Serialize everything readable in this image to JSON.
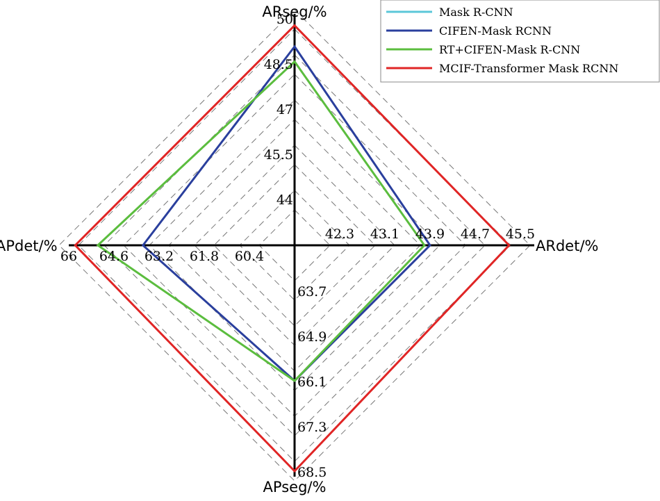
{
  "chart_data": {
    "type": "radar",
    "axes": [
      {
        "label": "ARseg/%",
        "ticks": [
          "44",
          "45.5",
          "47",
          "48.5",
          "50"
        ],
        "ticks_numeric": [
          44,
          45.5,
          47,
          48.5,
          50
        ],
        "min": 42.5,
        "max": 50
      },
      {
        "label": "ARdet/%",
        "ticks": [
          "42.3",
          "43.1",
          "43.9",
          "44.7",
          "45.5"
        ],
        "ticks_numeric": [
          42.3,
          43.1,
          43.9,
          44.7,
          45.5
        ],
        "min": 41.5,
        "max": 45.5
      },
      {
        "label": "APseg/%",
        "ticks": [
          "63.7",
          "64.9",
          "66.1",
          "67.3",
          "68.5"
        ],
        "ticks_numeric": [
          63.7,
          64.9,
          66.1,
          67.3,
          68.5
        ],
        "min": 62.5,
        "max": 68.5
      },
      {
        "label": "APdet/%",
        "ticks": [
          "60.4",
          "61.8",
          "63.2",
          "64.6",
          "66"
        ],
        "ticks_numeric": [
          60.4,
          61.8,
          63.2,
          64.6,
          66
        ],
        "min": 59.0,
        "max": 66
      }
    ],
    "series": [
      {
        "name": "Mask R-CNN",
        "color": "#5bc7d8",
        "values": [
          42.5,
          41.5,
          62.5,
          59.0
        ]
      },
      {
        "name": "CIFEN-Mask RCNN",
        "color": "#2a3f9d",
        "values": [
          49.1,
          43.9,
          66.1,
          63.7
        ]
      },
      {
        "name": "RT+CIFEN-Mask R-CNN",
        "color": "#5bbd3e",
        "values": [
          48.6,
          43.8,
          66.1,
          65.1
        ]
      },
      {
        "name": "MCIF-Transformer Mask RCNN",
        "color": "#e02525",
        "values": [
          49.8,
          45.3,
          68.5,
          65.8
        ]
      }
    ],
    "grid": true,
    "legend_position": "top-right"
  }
}
